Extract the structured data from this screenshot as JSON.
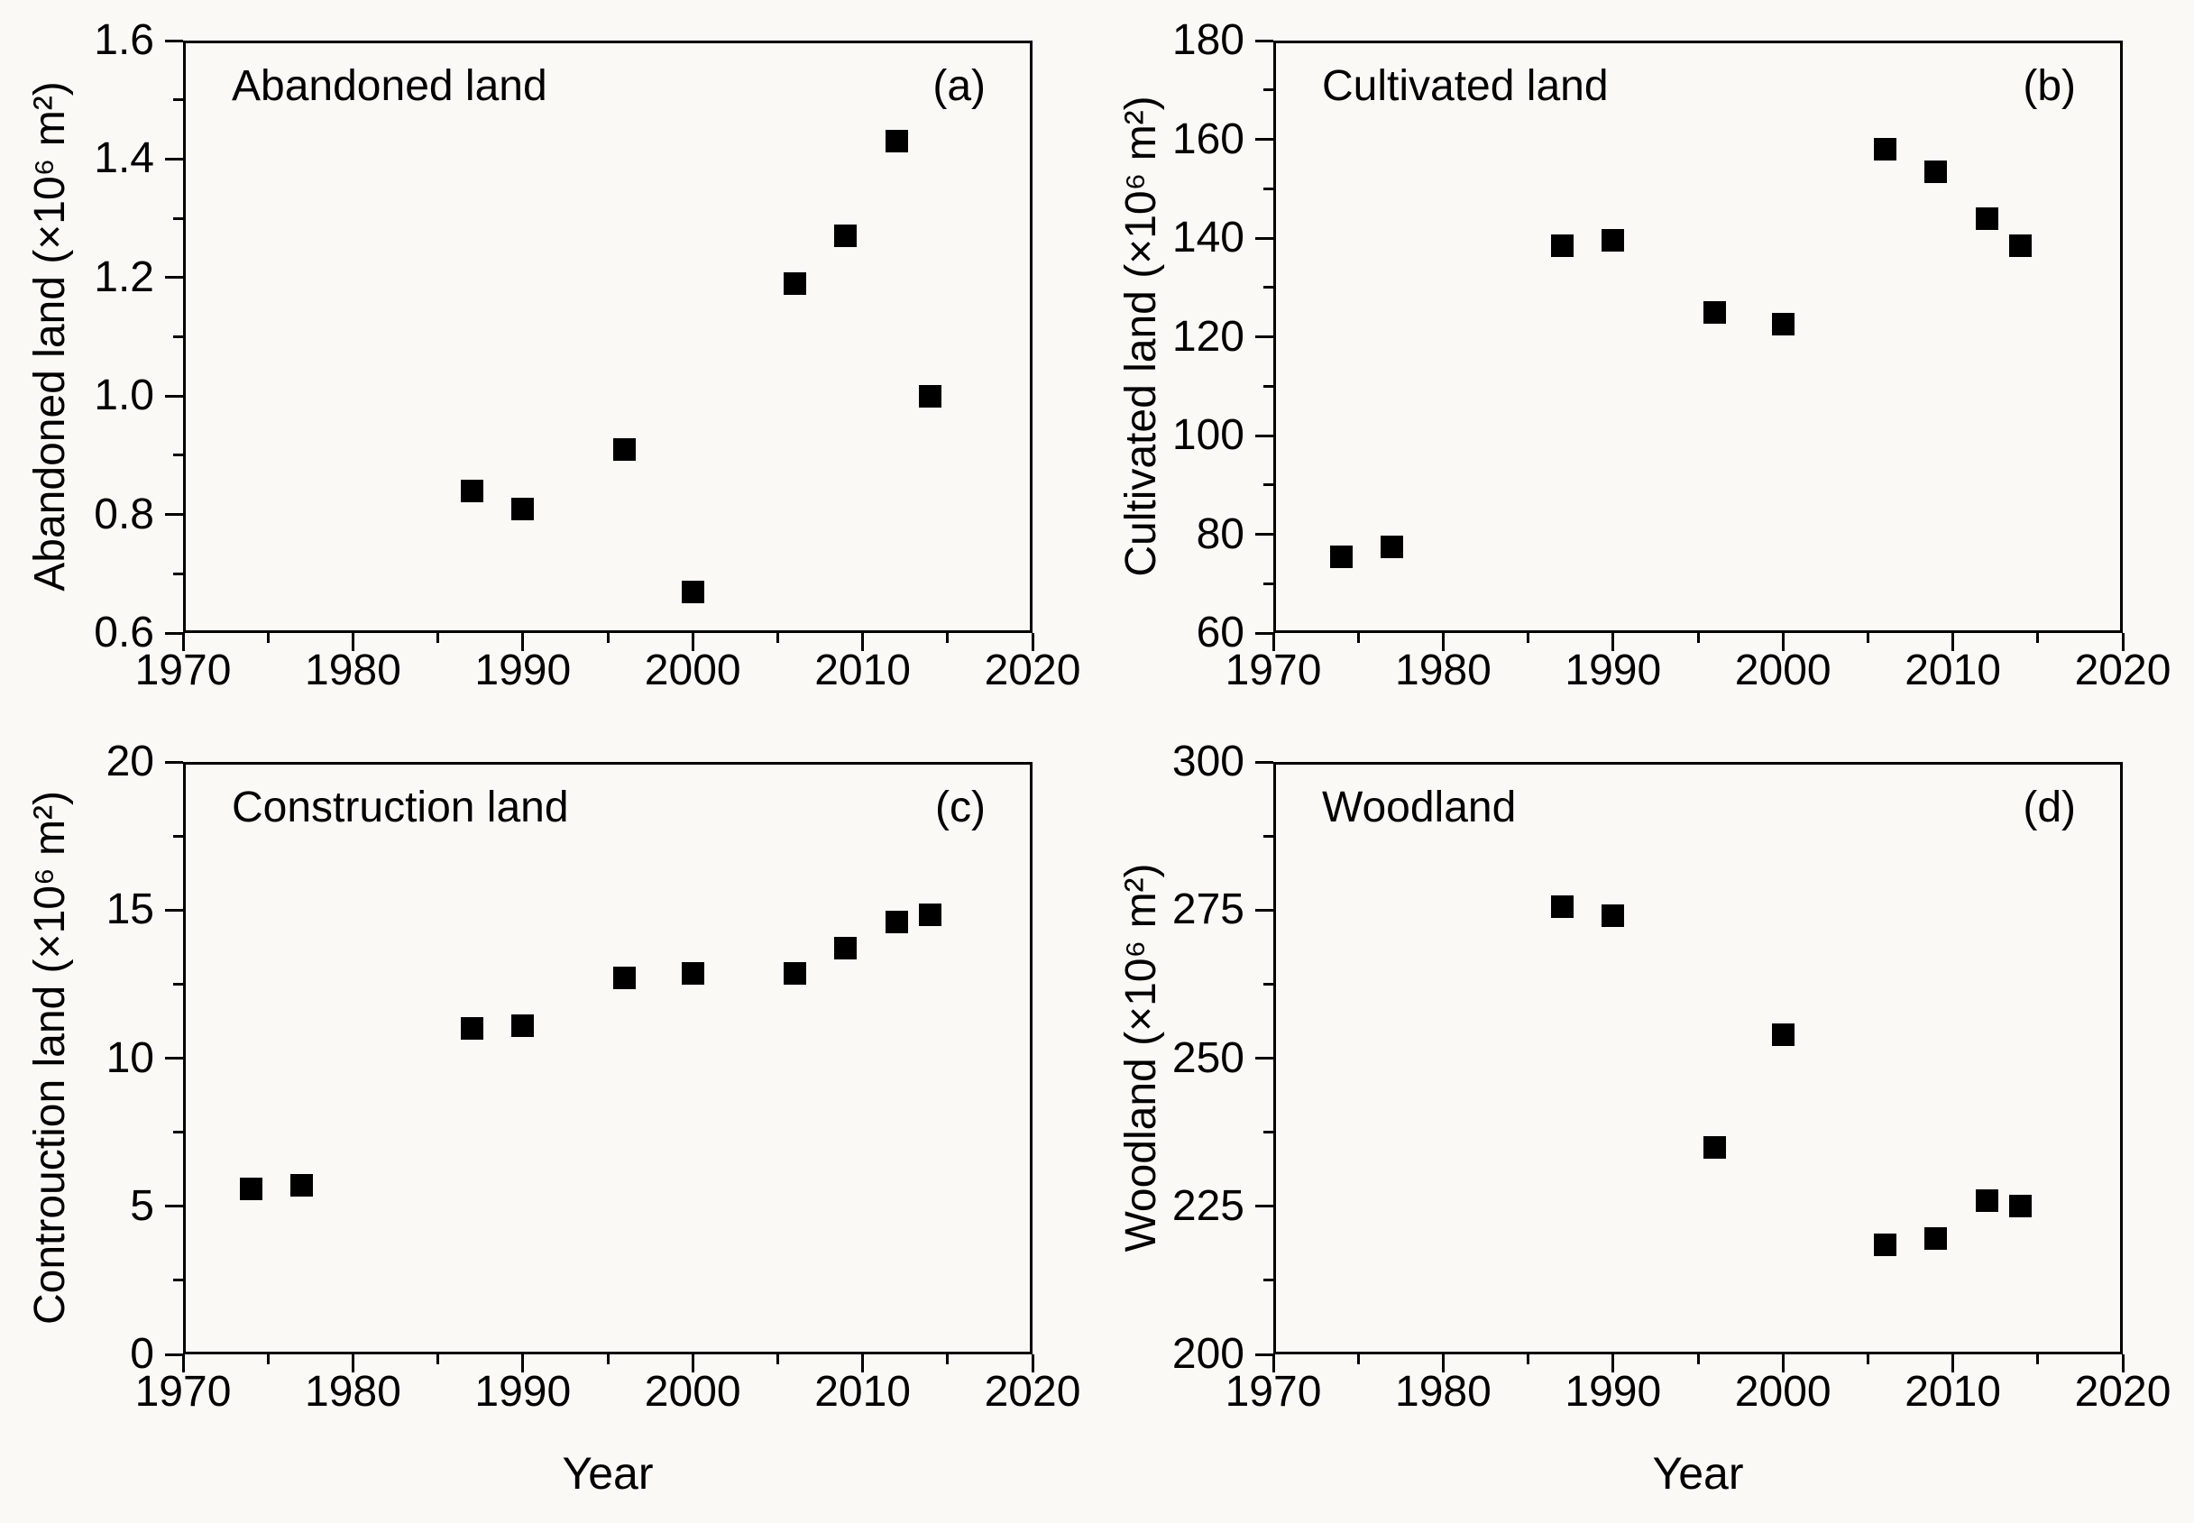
{
  "figure": {
    "background": "#faf9f5",
    "axis_color": "#000000",
    "marker_color": "#000000",
    "marker_shape": "filled-square",
    "xlabel": "Year",
    "xlim": [
      1970,
      2020
    ],
    "xticks": [
      1970,
      1980,
      1990,
      2000,
      2010,
      2020
    ],
    "xticks_minor": [
      1975,
      1985,
      1995,
      2005,
      2015
    ],
    "grid": false,
    "legend": "none"
  },
  "chart_data": [
    {
      "type": "scatter",
      "panel": "a",
      "title": "Abandoned land",
      "tag": "(a)",
      "ylabel": "Abandoned land (×10⁶ m²)",
      "xlabel": "",
      "ylim": [
        0.6,
        1.6
      ],
      "yticks": [
        "0.6",
        "0.8",
        "1.0",
        "1.2",
        "1.4",
        "1.6"
      ],
      "yticks_minor": [
        0.7,
        0.9,
        1.1,
        1.3,
        1.5
      ],
      "x": [
        1987,
        1990,
        1996,
        2000,
        2006,
        2009,
        2012,
        2014
      ],
      "y": [
        0.84,
        0.81,
        0.91,
        0.67,
        1.19,
        1.27,
        1.43,
        1.0
      ]
    },
    {
      "type": "scatter",
      "panel": "b",
      "title": "Cultivated land",
      "tag": "(b)",
      "ylabel": "Cultivated land (×10⁶ m²)",
      "xlabel": "",
      "ylim": [
        60,
        180
      ],
      "yticks": [
        "60",
        "80",
        "100",
        "120",
        "140",
        "160",
        "180"
      ],
      "yticks_minor": [
        70,
        90,
        110,
        130,
        150,
        170
      ],
      "x": [
        1974,
        1977,
        1987,
        1990,
        1996,
        2000,
        2006,
        2009,
        2012,
        2014
      ],
      "y": [
        75.5,
        77.5,
        138.5,
        139.5,
        125,
        122.5,
        158,
        153.5,
        144,
        138.5
      ]
    },
    {
      "type": "scatter",
      "panel": "c",
      "title": "Construction land",
      "tag": "(c)",
      "ylabel": "Controuction land (×10⁶ m²)",
      "xlabel": "Year",
      "ylim": [
        0,
        20
      ],
      "yticks": [
        "0",
        "5",
        "10",
        "15",
        "20"
      ],
      "yticks_minor": [
        2.5,
        7.5,
        12.5,
        17.5
      ],
      "x": [
        1974,
        1977,
        1987,
        1990,
        1996,
        2000,
        2006,
        2009,
        2012,
        2014
      ],
      "y": [
        5.6,
        5.7,
        11.0,
        11.1,
        12.7,
        12.85,
        12.85,
        13.7,
        14.6,
        14.85
      ]
    },
    {
      "type": "scatter",
      "panel": "d",
      "title": "Woodland",
      "tag": "(d)",
      "ylabel": "Woodland (×10⁶ m²)",
      "xlabel": "Year",
      "ylim": [
        200,
        300
      ],
      "yticks": [
        "200",
        "225",
        "250",
        "275",
        "300"
      ],
      "yticks_minor": [
        212.5,
        237.5,
        262.5,
        287.5
      ],
      "x": [
        1987,
        1990,
        1996,
        2000,
        2006,
        2009,
        2012,
        2014
      ],
      "y": [
        275.5,
        274,
        235,
        254,
        218.5,
        219.5,
        226,
        225
      ]
    }
  ]
}
